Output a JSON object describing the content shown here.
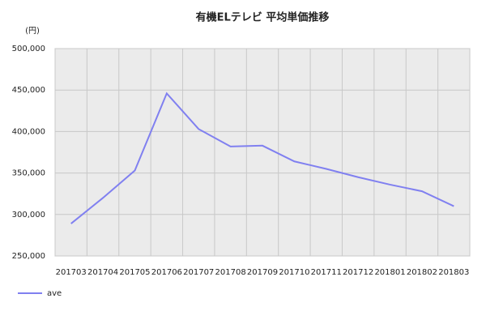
{
  "chart_data": {
    "type": "line",
    "title": "有機ELテレビ 平均単価推移",
    "y_label": "(円)",
    "categories": [
      "201703",
      "201704",
      "201705",
      "201706",
      "201707",
      "201708",
      "201709",
      "201710",
      "201711",
      "201712",
      "201801",
      "201802",
      "201803"
    ],
    "series": [
      {
        "name": "ave",
        "color": "#8080f0",
        "values": [
          289000,
          320000,
          353000,
          446000,
          403000,
          382000,
          383000,
          364000,
          355000,
          345000,
          336000,
          328000,
          310000
        ]
      }
    ],
    "ylim": [
      250000,
      500000
    ],
    "yticks": [
      {
        "value": 250000,
        "label": "250,000"
      },
      {
        "value": 300000,
        "label": "300,000"
      },
      {
        "value": 350000,
        "label": "350,000"
      },
      {
        "value": 400000,
        "label": "400,000"
      },
      {
        "value": 450000,
        "label": "450,000"
      },
      {
        "value": 500000,
        "label": "500,000"
      }
    ],
    "grid": true,
    "legend": "bottom-left"
  }
}
